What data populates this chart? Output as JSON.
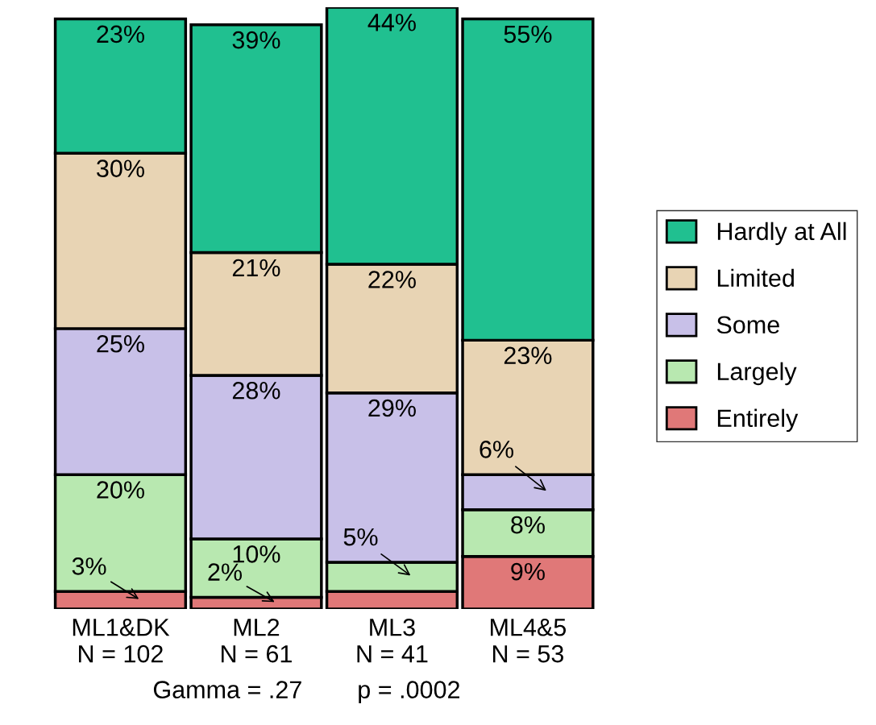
{
  "chart_data": {
    "type": "bar",
    "stacked": true,
    "tick_labels": "x",
    "legend": "right",
    "categories": [
      "ML1&DK\nN = 102",
      "ML2\nN = 61",
      "ML3\nN = 41",
      "ML4&5\nN = 53"
    ],
    "series": [
      {
        "name": "Entirely",
        "color": "#e07878",
        "values": [
          3,
          2,
          3,
          9
        ],
        "value_labels": [
          "3%",
          "2%",
          null,
          "9%"
        ]
      },
      {
        "name": "Largely",
        "color": "#b8e8b0",
        "values": [
          20,
          10,
          5,
          8
        ],
        "value_labels": [
          "20%",
          "10%",
          "5%",
          "8%"
        ]
      },
      {
        "name": "Some",
        "color": "#c8c0e8",
        "values": [
          25,
          28,
          29,
          6
        ],
        "value_labels": [
          "25%",
          "28%",
          "29%",
          "6%"
        ]
      },
      {
        "name": "Limited",
        "color": "#e8d4b4",
        "values": [
          30,
          21,
          22,
          23
        ],
        "value_labels": [
          "30%",
          "21%",
          "22%",
          "23%"
        ]
      },
      {
        "name": "Hardly at All",
        "color": "#20c090",
        "values": [
          23,
          39,
          44,
          55
        ],
        "value_labels": [
          "23%",
          "39%",
          "44%",
          "55%"
        ]
      }
    ],
    "annotations": [
      "Gamma = .27        p = .0002"
    ]
  }
}
